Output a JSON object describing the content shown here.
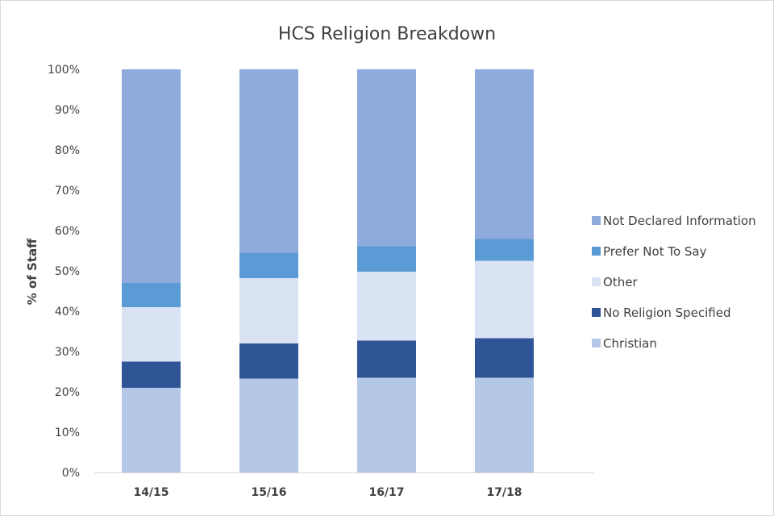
{
  "chart_data": {
    "type": "bar",
    "stacked": true,
    "title": "HCS Religion Breakdown",
    "xlabel": "",
    "ylabel": "% of Staff",
    "ylim": [
      0,
      100
    ],
    "yticks": [
      "0%",
      "10%",
      "20%",
      "30%",
      "40%",
      "50%",
      "60%",
      "70%",
      "80%",
      "90%",
      "100%"
    ],
    "categories": [
      "14/15",
      "15/16",
      "16/17",
      "17/18"
    ],
    "grid": false,
    "legend_position": "right",
    "series": [
      {
        "name": "Christian",
        "color": "#b4c7e7",
        "values": [
          21,
          23.3,
          23.5,
          23.5
        ]
      },
      {
        "name": "No Religion Specified",
        "color": "#2f5597",
        "values": [
          6.5,
          8.7,
          9.2,
          9.8
        ]
      },
      {
        "name": "Other",
        "color": "#dae3f3",
        "values": [
          13.5,
          16.2,
          17.1,
          19.2
        ]
      },
      {
        "name": "Prefer Not To Say",
        "color": "#5b9bd5",
        "values": [
          6,
          6.3,
          6.3,
          5.4
        ]
      },
      {
        "name": "Not Declared Information",
        "color": "#8faadc",
        "values": [
          53,
          45.5,
          43.9,
          42.1
        ]
      }
    ]
  }
}
